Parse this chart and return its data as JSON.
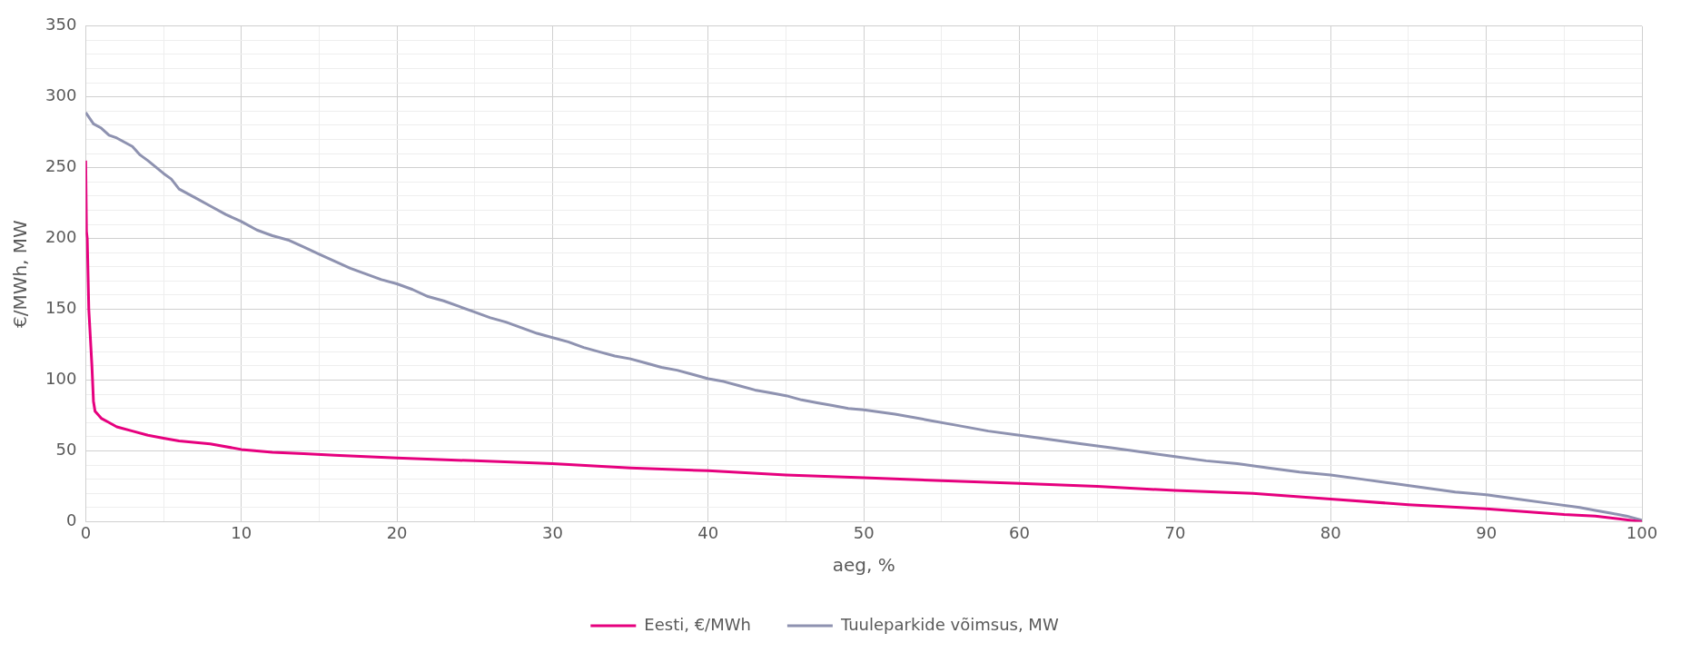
{
  "chart_data": {
    "type": "line",
    "xlabel": "aeg, %",
    "ylabel": "€/MWh, MW",
    "xlim": [
      0,
      100
    ],
    "xticks": [
      0,
      {
        "value": 5,
        "label": null
      },
      10,
      {
        "value": 15,
        "label": null
      },
      20,
      {
        "value": 25,
        "label": null
      },
      30,
      {
        "value": 35,
        "label": null
      },
      40,
      {
        "value": 45,
        "label": null
      },
      50,
      {
        "value": 55,
        "label": null
      },
      60,
      {
        "value": 65,
        "label": null
      },
      70,
      {
        "value": 75,
        "label": null
      },
      80,
      {
        "value": 85,
        "label": null
      },
      90,
      {
        "value": 95,
        "label": null
      },
      100
    ],
    "ylim": [
      0,
      350
    ],
    "yticks": [
      0,
      {
        "value": 10,
        "label": null
      },
      {
        "value": 20,
        "label": null
      },
      {
        "value": 30,
        "label": null
      },
      {
        "value": 40,
        "label": null
      },
      50,
      {
        "value": 60,
        "label": null
      },
      {
        "value": 70,
        "label": null
      },
      {
        "value": 80,
        "label": null
      },
      {
        "value": 90,
        "label": null
      },
      100,
      {
        "value": 110,
        "label": null
      },
      {
        "value": 120,
        "label": null
      },
      {
        "value": 130,
        "label": null
      },
      {
        "value": 140,
        "label": null
      },
      150,
      {
        "value": 160,
        "label": null
      },
      {
        "value": 170,
        "label": null
      },
      {
        "value": 180,
        "label": null
      },
      {
        "value": 190,
        "label": null
      },
      200,
      {
        "value": 210,
        "label": null
      },
      {
        "value": 220,
        "label": null
      },
      {
        "value": 230,
        "label": null
      },
      {
        "value": 240,
        "label": null
      },
      250,
      {
        "value": 260,
        "label": null
      },
      {
        "value": 270,
        "label": null
      },
      {
        "value": 280,
        "label": null
      },
      {
        "value": 290,
        "label": null
      },
      300,
      {
        "value": 310,
        "label": null
      },
      {
        "value": 320,
        "label": null
      },
      {
        "value": 330,
        "label": null
      },
      {
        "value": 340,
        "label": null
      },
      350
    ],
    "grid": true,
    "legend": "bottom",
    "marker": "none",
    "line_style": "solid",
    "series": [
      {
        "name": "Eesti, €/MWh",
        "color": "#e6007e",
        "x": [
          0,
          0.05,
          0.1,
          0.2,
          0.4,
          0.5,
          0.6,
          1,
          1.5,
          2,
          3,
          4,
          5,
          6,
          8,
          10,
          12,
          14,
          16,
          18,
          20,
          25,
          30,
          35,
          40,
          45,
          50,
          55,
          60,
          65,
          70,
          75,
          80,
          85,
          90,
          95,
          97,
          98.5,
          100
        ],
        "values": [
          255,
          205,
          200,
          150,
          110,
          85,
          78,
          73,
          70,
          67,
          64,
          61,
          59,
          57,
          55,
          51,
          49,
          48,
          47,
          46,
          45,
          43,
          41,
          38,
          36,
          33,
          31,
          29,
          27,
          25,
          22,
          20,
          16,
          12,
          9,
          5,
          4,
          2,
          0
        ]
      },
      {
        "name": "Tuuleparkide võimsus, MW",
        "color": "#8e92b0",
        "x": [
          0,
          0.5,
          1,
          1.5,
          2,
          3,
          3.5,
          4,
          5,
          5.5,
          6,
          7,
          8,
          9,
          10,
          11,
          12,
          13,
          14,
          15,
          16,
          17,
          18,
          19,
          20,
          21,
          22,
          23,
          24,
          25,
          26,
          27,
          28,
          29,
          30,
          31,
          32,
          33,
          34,
          35,
          36,
          37,
          38,
          39,
          40,
          41,
          42,
          43,
          44,
          45,
          46,
          47,
          48,
          49,
          50,
          52,
          54,
          56,
          58,
          60,
          62,
          64,
          66,
          68,
          70,
          72,
          74,
          76,
          78,
          80,
          82,
          84,
          86,
          88,
          90,
          92,
          94,
          96,
          97,
          98,
          99,
          100
        ],
        "values": [
          289,
          281,
          278,
          273,
          271,
          265,
          259,
          255,
          246,
          242,
          235,
          229,
          223,
          217,
          212,
          206,
          202,
          199,
          194,
          189,
          184,
          179,
          175,
          171,
          168,
          164,
          159,
          156,
          152,
          148,
          144,
          141,
          137,
          133,
          130,
          127,
          123,
          120,
          117,
          115,
          112,
          109,
          107,
          104,
          101,
          99,
          96,
          93,
          91,
          89,
          86,
          84,
          82,
          80,
          79,
          76,
          72,
          68,
          64,
          61,
          58,
          55,
          52,
          49,
          46,
          43,
          41,
          38,
          35,
          33,
          30,
          27,
          24,
          21,
          19,
          16,
          13,
          10,
          8,
          6,
          4,
          1
        ]
      }
    ]
  }
}
